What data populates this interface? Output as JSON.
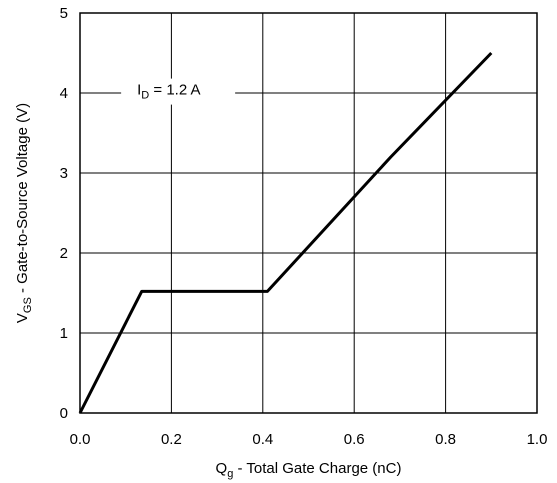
{
  "chart_data": {
    "type": "line",
    "xlabel": {
      "main": "Q",
      "sub": "g",
      "rest": " - Total Gate Charge (nC)"
    },
    "ylabel": {
      "main": "V",
      "sub": "GS",
      "rest": " - Gate-to-Source Voltage (V)"
    },
    "xlim": [
      0,
      1.0
    ],
    "ylim": [
      0,
      5
    ],
    "x_ticks": [
      "0.0",
      "0.2",
      "0.4",
      "0.6",
      "0.8",
      "1.0"
    ],
    "y_ticks": [
      "0",
      "1",
      "2",
      "3",
      "4",
      "5"
    ],
    "grid": true,
    "annotation": {
      "main": "I",
      "sub": "D",
      "rest": " = 1.2 A"
    },
    "series": [
      {
        "x": [
          0.0,
          0.135,
          0.41,
          0.68,
          0.9
        ],
        "y": [
          0.0,
          1.52,
          1.52,
          3.2,
          4.5
        ]
      }
    ],
    "colors": {
      "line": "#000000",
      "grid": "#000000"
    }
  }
}
